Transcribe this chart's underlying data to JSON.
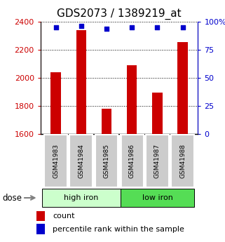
{
  "title": "GDS2073 / 1389219_at",
  "samples": [
    "GSM41983",
    "GSM41984",
    "GSM41985",
    "GSM41986",
    "GSM41987",
    "GSM41988"
  ],
  "bar_values": [
    2040,
    2340,
    1780,
    2090,
    1895,
    2255
  ],
  "percentile_values": [
    95,
    96,
    94,
    95,
    95,
    95
  ],
  "bar_color": "#cc0000",
  "dot_color": "#0000cc",
  "ylim_left": [
    1600,
    2400
  ],
  "ylim_right": [
    0,
    100
  ],
  "yticks_left": [
    1600,
    1800,
    2000,
    2200,
    2400
  ],
  "yticks_right": [
    0,
    25,
    50,
    75,
    100
  ],
  "groups": [
    {
      "label": "high iron",
      "samples_count": 3,
      "color": "#ccffcc"
    },
    {
      "label": "low iron",
      "samples_count": 3,
      "color": "#55dd55"
    }
  ],
  "dose_label": "dose",
  "legend_count_label": "count",
  "legend_percentile_label": "percentile rank within the sample",
  "title_fontsize": 11,
  "axis_label_color_left": "#cc0000",
  "axis_label_color_right": "#0000cc",
  "bar_baseline": 1600,
  "tick_label_area_color": "#cccccc",
  "bar_width": 0.4
}
